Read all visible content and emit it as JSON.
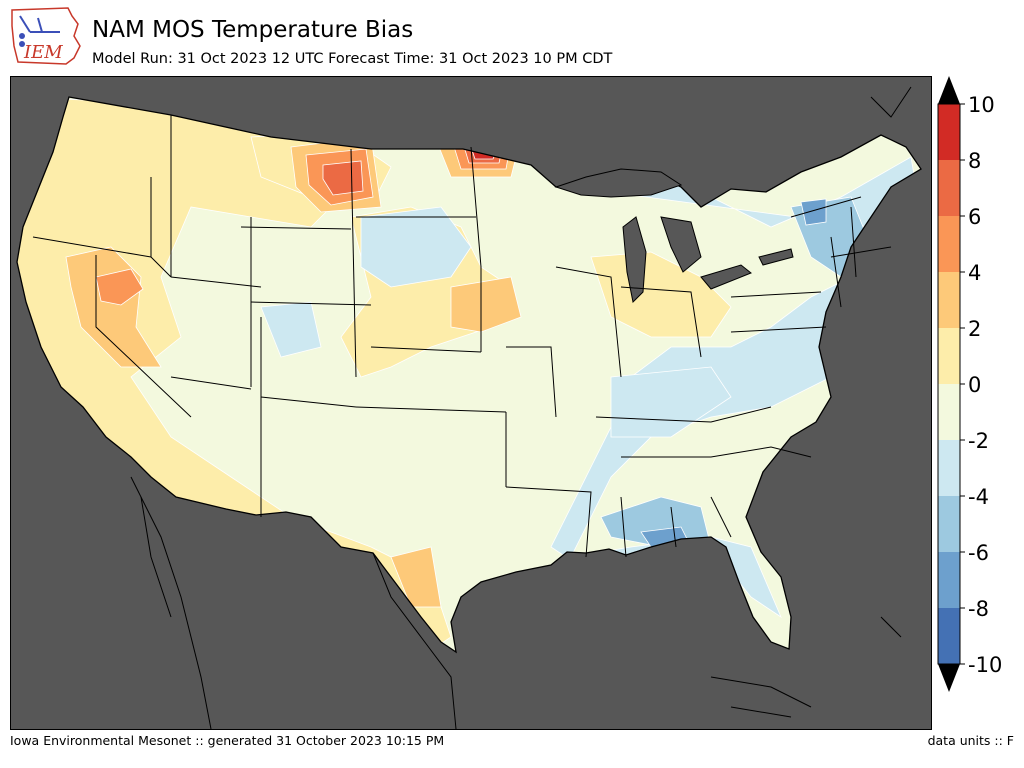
{
  "header": {
    "title": "NAM MOS Temperature Bias",
    "subtitle": "Model Run: 31 Oct 2023 12 UTC Forecast Time: 31 Oct 2023 10 PM CDT"
  },
  "logo": {
    "text": "IEM",
    "color": "#c8382a",
    "accent": "#3b4fb8"
  },
  "footer": {
    "left": "Iowa Environmental Mesonet :: generated 31 October 2023 10:15 PM",
    "right": "data units :: F"
  },
  "map": {
    "ocean_color": "#575757",
    "land_base_color": "#f3f9de",
    "border_color": "#000000"
  },
  "colorbar": {
    "levels": [
      -10,
      -8,
      -6,
      -4,
      -2,
      0,
      2,
      4,
      6,
      8,
      10
    ],
    "tick_labels": [
      "10",
      "8",
      "6",
      "4",
      "2",
      "0",
      "-2",
      "-4",
      "-6",
      "-8",
      "-10"
    ],
    "colors": [
      "#4471b4",
      "#6da0cd",
      "#9dc9e0",
      "#cde8f1",
      "#f3f9de",
      "#fdedaa",
      "#fdc979",
      "#fa9656",
      "#eb6a44",
      "#d22b25"
    ],
    "extend_min_color": "#000000",
    "extend_max_color": "#000000"
  }
}
